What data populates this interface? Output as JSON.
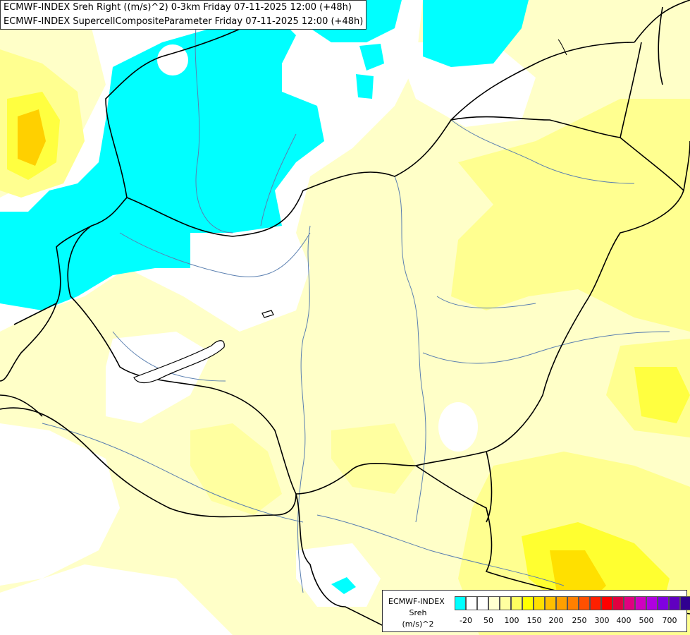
{
  "title": {
    "line1": "ECMWF-INDEX Sreh Right ((m/s)^2) 0-3km Friday 07-11-2025 12:00 (+48h)",
    "line2": "ECMWF-INDEX SupercellCompositeParameter Friday 07-11-2025 12:00 (+48h)"
  },
  "legend": {
    "model": "ECMWF-INDEX",
    "variable": "Sreh",
    "unit": "(m/s)^2",
    "colors": [
      "#00ffff",
      "#ffffff",
      "#ffffff",
      "#ffffd0",
      "#ffffa0",
      "#ffff60",
      "#ffff00",
      "#ffe000",
      "#ffc000",
      "#ffa000",
      "#ff8000",
      "#ff5000",
      "#ff2000",
      "#ff0000",
      "#e00040",
      "#e00080",
      "#d000c0",
      "#b000e0",
      "#8000e0",
      "#6000c0",
      "#300090",
      "#000070"
    ],
    "ticks": [
      "-20",
      "50",
      "100",
      "150",
      "200",
      "250",
      "300",
      "400",
      "500",
      "700"
    ]
  },
  "colors": {
    "cyan": "#00ffff",
    "white": "#ffffff",
    "pale_yellow": "#ffffc8",
    "light_yellow": "#ffffa0",
    "yellow": "#ffff60",
    "gold": "#ffe000",
    "orange": "#ffc000",
    "border": "#000000",
    "river": "#5a7fb0"
  }
}
